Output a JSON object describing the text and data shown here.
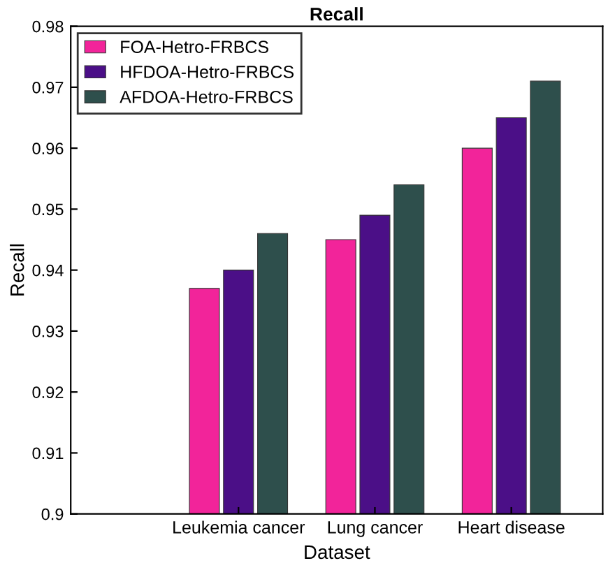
{
  "chart_data": {
    "type": "bar",
    "title": "Recall",
    "xlabel": "Dataset",
    "ylabel": "Recall",
    "categories": [
      "Leukemia cancer",
      "Lung cancer",
      "Heart disease"
    ],
    "series": [
      {
        "name": "FOA-Hetro-FRBCS",
        "color": "#f2249a",
        "values": [
          0.937,
          0.945,
          0.96
        ]
      },
      {
        "name": "HFDOA-Hetro-FRBCS",
        "color": "#4b0f87",
        "values": [
          0.94,
          0.949,
          0.965
        ]
      },
      {
        "name": "AFDOA-Hetro-FRBCS",
        "color": "#2e4f4c",
        "values": [
          0.946,
          0.954,
          0.971
        ]
      }
    ],
    "ylim": [
      0.9,
      0.98
    ],
    "yticks": [
      0.9,
      0.91,
      0.92,
      0.93,
      0.94,
      0.95,
      0.96,
      0.97,
      0.98
    ],
    "legend": "top left",
    "grid": false
  }
}
